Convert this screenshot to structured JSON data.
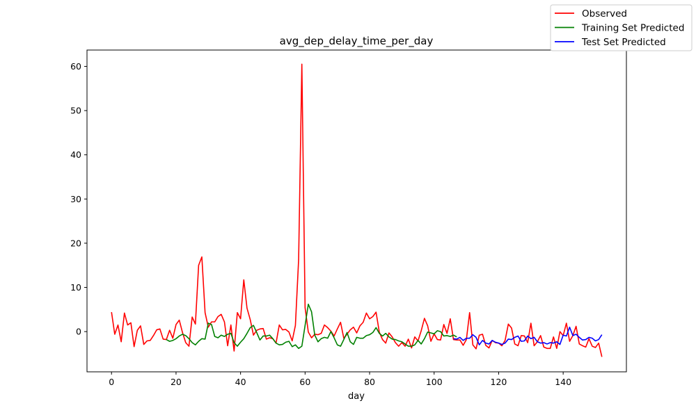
{
  "chart_data": {
    "type": "line",
    "title": "avg_dep_delay_time_per_day",
    "xlabel": "day",
    "ylabel": "",
    "xlim": [
      -7.6,
      159.6
    ],
    "ylim": [
      -9.1,
      63.7
    ],
    "xticks": [
      0,
      20,
      40,
      60,
      80,
      100,
      120,
      140
    ],
    "yticks": [
      0,
      10,
      20,
      30,
      40,
      50,
      60
    ],
    "grid": false,
    "legend_position": "top-right",
    "series": [
      {
        "name": "Observed",
        "color": "#ff0000",
        "x_start": 0,
        "values": [
          4.4,
          -0.6,
          1.5,
          -2.3,
          4.2,
          1.5,
          2.0,
          -3.4,
          0.3,
          1.3,
          -2.9,
          -2.1,
          -2.0,
          -0.9,
          0.4,
          0.6,
          -1.7,
          -1.8,
          0.3,
          -1.5,
          1.6,
          2.6,
          -0.2,
          -2.5,
          -3.3,
          3.3,
          1.7,
          15.0,
          16.9,
          4.3,
          1.0,
          2.2,
          2.2,
          3.4,
          3.9,
          2.2,
          -3.2,
          1.5,
          -4.4,
          4.3,
          2.9,
          11.7,
          5.3,
          2.7,
          -0.8,
          0.3,
          0.6,
          0.7,
          -1.7,
          -1.4,
          -1.6,
          -2.6,
          1.5,
          0.4,
          0.5,
          -0.1,
          -2.1,
          1.4,
          16.3,
          60.5,
          5.4,
          -0.1,
          -1.4,
          -0.6,
          -0.7,
          -0.4,
          1.5,
          0.9,
          0.1,
          -1.0,
          0.6,
          2.1,
          -1.5,
          -0.6,
          0.4,
          1.0,
          -0.3,
          1.3,
          2.1,
          4.2,
          2.9,
          3.4,
          4.4,
          -0.1,
          -1.8,
          -2.6,
          -0.3,
          -1.2,
          -2.5,
          -3.3,
          -2.5,
          -3.3,
          -1.7,
          -3.7,
          -1.2,
          -2.1,
          0.2,
          3.0,
          1.3,
          -2.2,
          -0.5,
          -1.8,
          -1.9,
          1.6,
          -0.4,
          2.9,
          -1.8,
          -1.9,
          -1.9,
          -3.1,
          -1.8,
          4.3,
          -3.0,
          -3.9,
          -0.8,
          -0.6,
          -3.1,
          -3.7,
          -2.0,
          -2.5,
          -2.6,
          -3.2,
          -2.0,
          1.7,
          0.8,
          -2.8,
          -3.2,
          -0.9,
          -1.0,
          -2.5,
          1.9,
          -3.2,
          -2.3,
          -0.9,
          -3.5,
          -3.8,
          -3.8,
          -1.2,
          -3.8,
          0.0,
          -0.9,
          1.9,
          -2.2,
          -0.9,
          1.2,
          -2.8,
          -3.2,
          -3.5,
          -1.6,
          -3.3,
          -3.6,
          -2.6,
          -5.7
        ]
      },
      {
        "name": "Training Set Predicted",
        "color": "#008000",
        "x_start": 17,
        "values": [
          -1.8,
          -2.2,
          -2.0,
          -1.6,
          -1.0,
          -0.6,
          -0.9,
          -1.6,
          -2.5,
          -3.0,
          -2.2,
          -1.6,
          -1.7,
          1.9,
          1.6,
          -1.1,
          -1.4,
          -0.8,
          -1.1,
          -0.6,
          -0.4,
          -2.5,
          -3.3,
          -2.4,
          -1.6,
          -0.4,
          0.9,
          1.4,
          -0.2,
          -1.9,
          -1.0,
          -1.0,
          -0.8,
          -1.6,
          -2.6,
          -3.0,
          -2.9,
          -2.4,
          -2.2,
          -3.4,
          -3.0,
          -3.8,
          -3.3,
          1.4,
          6.2,
          4.5,
          -0.8,
          -2.3,
          -1.6,
          -1.3,
          -1.5,
          0.0,
          -1.4,
          -3.0,
          -3.3,
          -1.8,
          -0.2,
          -2.3,
          -2.9,
          -1.3,
          -1.5,
          -1.5,
          -0.9,
          -0.7,
          -0.2,
          0.9,
          -0.4,
          -1.0,
          -0.4,
          -1.2,
          -1.7,
          -1.8,
          -2.1,
          -2.3,
          -2.8,
          -3.3,
          -3.3,
          -3.0,
          -2.0,
          -2.8,
          -1.6,
          -0.1,
          -0.3,
          -0.5,
          0.2,
          0.0,
          -1.0,
          -0.9,
          -1.1,
          -0.8,
          -1.2
        ]
      },
      {
        "name": "Test Set Predicted",
        "color": "#0000ff",
        "x_start": 106,
        "values": [
          -1.6,
          -1.7,
          -1.3,
          -2.0,
          -1.5,
          -1.5,
          -0.7,
          -1.3,
          -3.0,
          -2.0,
          -2.6,
          -2.8,
          -2.0,
          -2.4,
          -2.6,
          -2.9,
          -2.6,
          -1.7,
          -1.8,
          -1.3,
          -1.0,
          -2.2,
          -2.1,
          -1.0,
          -1.6,
          -1.3,
          -2.3,
          -2.6,
          -2.5,
          -2.8,
          -2.5,
          -2.6,
          -2.3,
          -2.9,
          -0.8,
          -1.0,
          1.0,
          -0.9,
          -0.6,
          -1.3,
          -1.9,
          -1.8,
          -1.3,
          -1.5,
          -2.1,
          -1.8,
          -0.7
        ]
      }
    ]
  }
}
